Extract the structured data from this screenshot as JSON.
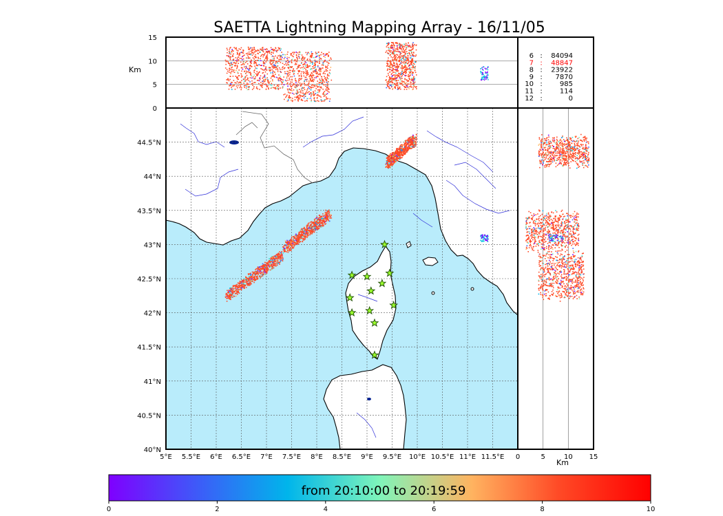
{
  "chart_data": {
    "type": "scatter",
    "title": "SAETTA Lightning Mapping Array - 16/11/05",
    "map": {
      "lon_range": [
        5,
        12
      ],
      "lat_range": [
        40,
        45
      ],
      "lon_ticks": [
        "5°E",
        "5.5°E",
        "6°E",
        "6.5°E",
        "7°E",
        "7.5°E",
        "8°E",
        "8.5°E",
        "9°E",
        "9.5°E",
        "10°E",
        "10.5°E",
        "11°E",
        "11.5°E"
      ],
      "lat_ticks": [
        "40°N",
        "40.5°N",
        "41°N",
        "41.5°N",
        "42°N",
        "42.5°N",
        "43°N",
        "43.5°N",
        "44°N",
        "44.5°N"
      ],
      "grid": true,
      "sea_color": "#b9ecfb",
      "land_color": "#ffffff"
    },
    "altitude_panel": {
      "ylabel": "Km",
      "yticks": [
        "0",
        "5",
        "10",
        "15"
      ],
      "ylim": [
        0,
        15
      ]
    },
    "side_panel": {
      "xlabel": "Km",
      "xticks": [
        "0",
        "5",
        "10",
        "15"
      ],
      "xlim": [
        0,
        15
      ]
    },
    "counts_legend": [
      {
        "label": "6",
        "count": "84094",
        "highlight": false
      },
      {
        "label": "7",
        "count": "48847",
        "highlight": true
      },
      {
        "label": "8",
        "count": "23922",
        "highlight": false
      },
      {
        "label": "9",
        "count": "7870",
        "highlight": false
      },
      {
        "label": "10",
        "count": "985",
        "highlight": false
      },
      {
        "label": "11",
        "count": "114",
        "highlight": false
      },
      {
        "label": "12",
        "count": "0",
        "highlight": false
      }
    ],
    "stations": [
      {
        "lon": 9.35,
        "lat": 43.0
      },
      {
        "lon": 8.7,
        "lat": 42.55
      },
      {
        "lon": 9.0,
        "lat": 42.53
      },
      {
        "lon": 9.45,
        "lat": 42.58
      },
      {
        "lon": 9.3,
        "lat": 42.43
      },
      {
        "lon": 9.08,
        "lat": 42.32
      },
      {
        "lon": 8.66,
        "lat": 42.22
      },
      {
        "lon": 9.53,
        "lat": 42.11
      },
      {
        "lon": 9.05,
        "lat": 42.03
      },
      {
        "lon": 8.7,
        "lat": 42.0
      },
      {
        "lon": 9.15,
        "lat": 41.85
      },
      {
        "lon": 9.15,
        "lat": 41.38
      }
    ],
    "cells": [
      {
        "lon_min": 6.2,
        "lon_max": 7.3,
        "lat_min": 42.25,
        "lat_max": 42.85,
        "shape": "band",
        "color": "#ff4a26",
        "alt_min": 4,
        "alt_max": 13
      },
      {
        "lon_min": 7.35,
        "lon_max": 8.25,
        "lat_min": 42.95,
        "lat_max": 43.45,
        "shape": "band",
        "color": "#ff4a26",
        "alt_min": 1.5,
        "alt_max": 12
      },
      {
        "lon_min": 9.4,
        "lon_max": 9.95,
        "lat_min": 44.2,
        "lat_max": 44.55,
        "shape": "band",
        "color": "#ff4a26",
        "alt_min": 4,
        "alt_max": 14
      },
      {
        "lon_min": 11.25,
        "lon_max": 11.4,
        "lat_min": 43.05,
        "lat_max": 43.15,
        "shape": "blob",
        "color": "#16c9e0",
        "alt_min": 6,
        "alt_max": 9
      }
    ],
    "colorbar": {
      "label": "from 20:10:00 to 20:19:59",
      "ticks": [
        "0",
        "2",
        "4",
        "6",
        "8",
        "10"
      ],
      "range": [
        0,
        10
      ],
      "colors": [
        "#7f00ff",
        "#3b5ef8",
        "#00b5eb",
        "#7ff5ba",
        "#ffb360",
        "#ff4a26",
        "#ff0000"
      ]
    }
  }
}
